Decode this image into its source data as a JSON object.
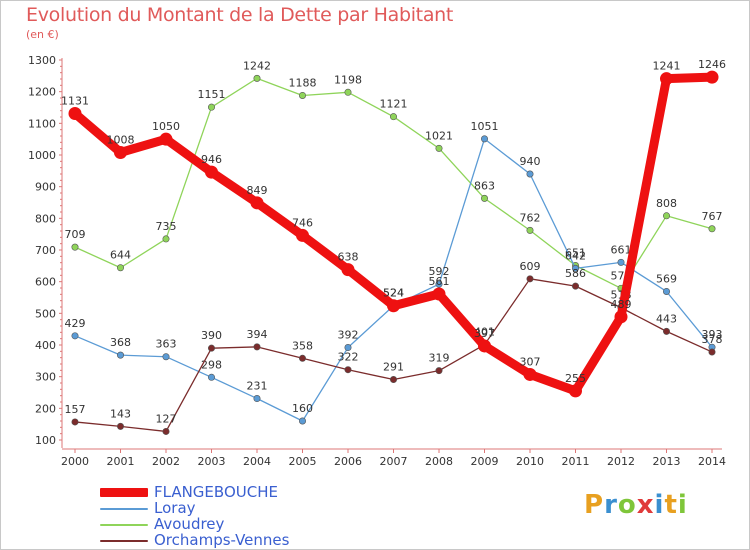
{
  "title": "Evolution du Montant de la Dette par Habitant",
  "subtitle": "(en €)",
  "logo": "Proxiti",
  "chart_data": {
    "type": "line",
    "title": "Evolution du Montant de la Dette par Habitant",
    "subtitle": "(en €)",
    "x": [
      "2000",
      "2001",
      "2002",
      "2003",
      "2004",
      "2005",
      "2006",
      "2007",
      "2008",
      "2009",
      "2010",
      "2011",
      "2012",
      "2013",
      "2014"
    ],
    "ylim": [
      100,
      1300
    ],
    "yticks": [
      100,
      200,
      300,
      400,
      500,
      600,
      700,
      800,
      900,
      1000,
      1100,
      1200,
      1300
    ],
    "grid": false,
    "legend": "bottom-left",
    "series": [
      {
        "name": "Avoudrey",
        "color": "#8fd45a",
        "values": [
          709,
          644,
          735,
          1151,
          1242,
          1188,
          1198,
          1121,
          1021,
          863,
          762,
          651,
          579,
          808,
          767
        ]
      },
      {
        "name": "Loray",
        "color": "#5b9bd5",
        "values": [
          429,
          368,
          363,
          298,
          231,
          160,
          392,
          524,
          592,
          1051,
          940,
          642,
          661,
          569,
          393
        ]
      },
      {
        "name": "Orchamps-Vennes",
        "color": "#7b2c2c",
        "values": [
          157,
          143,
          127,
          390,
          394,
          358,
          322,
          291,
          319,
          401,
          609,
          586,
          518,
          443,
          378
        ]
      },
      {
        "name": "FLANGEBOUCHE",
        "color": "#ee1111",
        "values": [
          1131,
          1008,
          1050,
          946,
          849,
          746,
          638,
          524,
          561,
          397,
          307,
          255,
          489,
          1241,
          1246
        ]
      }
    ],
    "legend_order": [
      "FLANGEBOUCHE",
      "Loray",
      "Avoudrey",
      "Orchamps-Vennes"
    ]
  }
}
